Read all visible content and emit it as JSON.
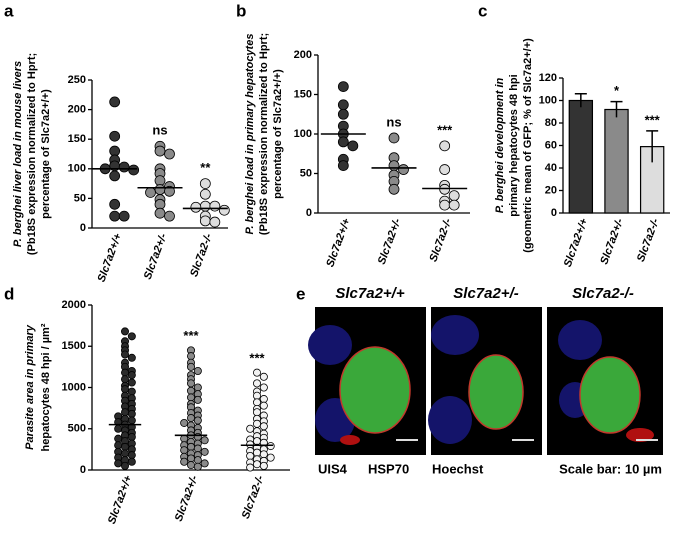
{
  "chart_data": [
    {
      "type": "dotplot",
      "panel": "a",
      "ylabel": [
        "P. berghei  liver load in mouse livers",
        "(Pb18S expression normalized to  Hprt;",
        "percentage of Slc7a2+/+)"
      ],
      "categories": [
        "Slc7a2+/+",
        "Slc7a2+/-",
        "Slc7a2-/-"
      ],
      "groups": [
        {
          "color": "#333333",
          "center": 100,
          "values": [
            213,
            155,
            130,
            115,
            105,
            103,
            100,
            98,
            88,
            40,
            20,
            20
          ]
        },
        {
          "color": "#8a8a8a",
          "center": 68,
          "values": [
            138,
            130,
            125,
            100,
            92,
            80,
            70,
            65,
            62,
            60,
            48,
            40,
            25,
            20
          ]
        },
        {
          "color": "#dddddd",
          "center": 33,
          "values": [
            75,
            57,
            37,
            37,
            35,
            30,
            20,
            12,
            10
          ]
        }
      ],
      "significance": [
        null,
        "ns",
        "**"
      ],
      "ylim": [
        0,
        250
      ],
      "yticks": [
        0,
        50,
        100,
        150,
        200,
        250
      ]
    },
    {
      "type": "dotplot",
      "panel": "b",
      "ylabel": [
        "P. berghei load in primary hepatocytes",
        "(Pb18S expression normalized to Hprt;",
        "percentage of Slc7a2+/+)"
      ],
      "categories": [
        "Slc7a2+/+",
        "Slc7a2+/-",
        "Slc7a2-/-"
      ],
      "groups": [
        {
          "color": "#333333",
          "center": 100,
          "values": [
            160,
            137,
            125,
            110,
            100,
            90,
            85,
            68,
            60
          ]
        },
        {
          "color": "#8a8a8a",
          "center": 57,
          "values": [
            95,
            70,
            60,
            55,
            48,
            40,
            30
          ]
        },
        {
          "color": "#dddddd",
          "center": 31,
          "values": [
            85,
            55,
            35,
            30,
            22,
            15,
            10,
            10
          ]
        }
      ],
      "significance": [
        null,
        "ns",
        "***"
      ],
      "ylim": [
        0,
        200
      ],
      "yticks": [
        0,
        50,
        100,
        150,
        200
      ]
    },
    {
      "type": "bar",
      "panel": "c",
      "ylabel": [
        "P. berghei development in",
        "primary hepatocytes 48 hpi",
        "(geometric mean of GFP; % of Slc7a2+/+)"
      ],
      "categories": [
        "Slc7a2+/+",
        "Slc7a2+/-",
        "Slc7a2-/-"
      ],
      "values": [
        100,
        92,
        59
      ],
      "errors": [
        6,
        7,
        14
      ],
      "colors": [
        "#333333",
        "#8a8a8a",
        "#dddddd"
      ],
      "significance": [
        null,
        "*",
        "***"
      ],
      "ylim": [
        0,
        120
      ],
      "yticks": [
        0,
        20,
        40,
        60,
        80,
        100,
        120
      ]
    },
    {
      "type": "dotplot",
      "panel": "d",
      "ylabel": [
        "Parasite area in primary",
        "hepatocytes 48 hpi /  µm²"
      ],
      "categories": [
        "Slc7a2+/+",
        "Slc7a2+/-",
        "Slc7a2-/-"
      ],
      "groups": [
        {
          "color": "#2b2b2b",
          "center": 550,
          "values": [
            1680,
            1620,
            1560,
            1500,
            1450,
            1400,
            1360,
            1300,
            1250,
            1200,
            1180,
            1150,
            1100,
            1060,
            1020,
            980,
            950,
            900,
            870,
            840,
            800,
            770,
            740,
            700,
            680,
            650,
            620,
            600,
            580,
            550,
            520,
            500,
            480,
            450,
            420,
            400,
            380,
            350,
            320,
            300,
            280,
            250,
            220,
            200,
            180,
            150,
            120,
            100,
            80,
            50
          ]
        },
        {
          "color": "#8a8a8a",
          "center": 420,
          "values": [
            1450,
            1380,
            1300,
            1250,
            1200,
            1150,
            1100,
            1050,
            1000,
            960,
            920,
            880,
            850,
            800,
            760,
            720,
            690,
            660,
            630,
            600,
            570,
            540,
            510,
            480,
            450,
            420,
            400,
            380,
            360,
            340,
            320,
            300,
            280,
            260,
            240,
            220,
            200,
            180,
            160,
            140,
            120,
            100,
            80,
            60,
            40
          ]
        },
        {
          "color": "#f2f2f2",
          "center": 300,
          "values": [
            1180,
            1130,
            1050,
            1000,
            950,
            900,
            860,
            820,
            780,
            740,
            700,
            660,
            620,
            590,
            560,
            530,
            500,
            470,
            440,
            410,
            390,
            370,
            350,
            330,
            310,
            290,
            270,
            250,
            230,
            210,
            190,
            170,
            150,
            130,
            110,
            90,
            70,
            50,
            30
          ]
        }
      ],
      "significance": [
        null,
        "***",
        "***"
      ],
      "ylim": [
        0,
        2000
      ],
      "yticks": [
        0,
        500,
        1000,
        1500,
        2000
      ]
    }
  ],
  "micrographs": {
    "panel": "e",
    "headers": [
      "Slc7a2+/+",
      "Slc7a2+/-",
      "Slc7a2-/-"
    ],
    "channels": [
      {
        "label": "UIS4",
        "color": "#e01010"
      },
      {
        "label": "HSP70",
        "color": "#22b822"
      },
      {
        "label": "Hoechst",
        "color": "#1a1aff"
      }
    ],
    "scale_bar": "Scale bar: 10 µm"
  }
}
